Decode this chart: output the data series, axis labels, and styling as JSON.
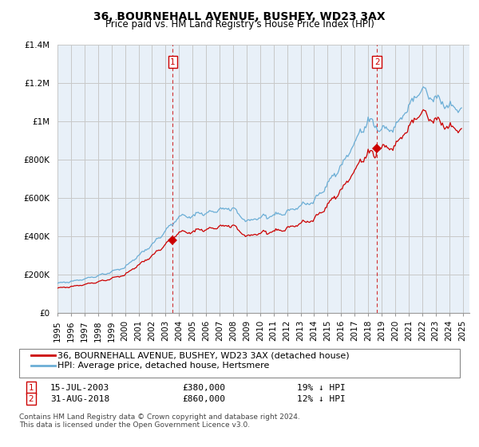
{
  "title": "36, BOURNEHALL AVENUE, BUSHEY, WD23 3AX",
  "subtitle": "Price paid vs. HM Land Registry's House Price Index (HPI)",
  "ylim": [
    0,
    1400000
  ],
  "yticks": [
    0,
    200000,
    400000,
    600000,
    800000,
    1000000,
    1200000,
    1400000
  ],
  "ytick_labels": [
    "£0",
    "£200K",
    "£400K",
    "£600K",
    "£800K",
    "£1M",
    "£1.2M",
    "£1.4M"
  ],
  "xlim_start": 1995.0,
  "xlim_end": 2025.5,
  "sale1_date": 2003.538,
  "sale1_price": 380000,
  "sale2_date": 2018.664,
  "sale2_price": 860000,
  "sale1_text": "15-JUL-2003",
  "sale1_pct": "19% ↓ HPI",
  "sale2_text": "31-AUG-2018",
  "sale2_pct": "12% ↓ HPI",
  "hpi_color": "#6baed6",
  "price_color": "#cc0000",
  "plot_bg_color": "#e8f0f8",
  "background_color": "#ffffff",
  "grid_color": "#c8c8c8",
  "legend_line1": "36, BOURNEHALL AVENUE, BUSHEY, WD23 3AX (detached house)",
  "legend_line2": "HPI: Average price, detached house, Hertsmere",
  "footnote": "Contains HM Land Registry data © Crown copyright and database right 2024.\nThis data is licensed under the Open Government Licence v3.0.",
  "title_fontsize": 10,
  "subtitle_fontsize": 8.5,
  "tick_fontsize": 7.5,
  "legend_fontsize": 8,
  "footnote_fontsize": 6.5
}
